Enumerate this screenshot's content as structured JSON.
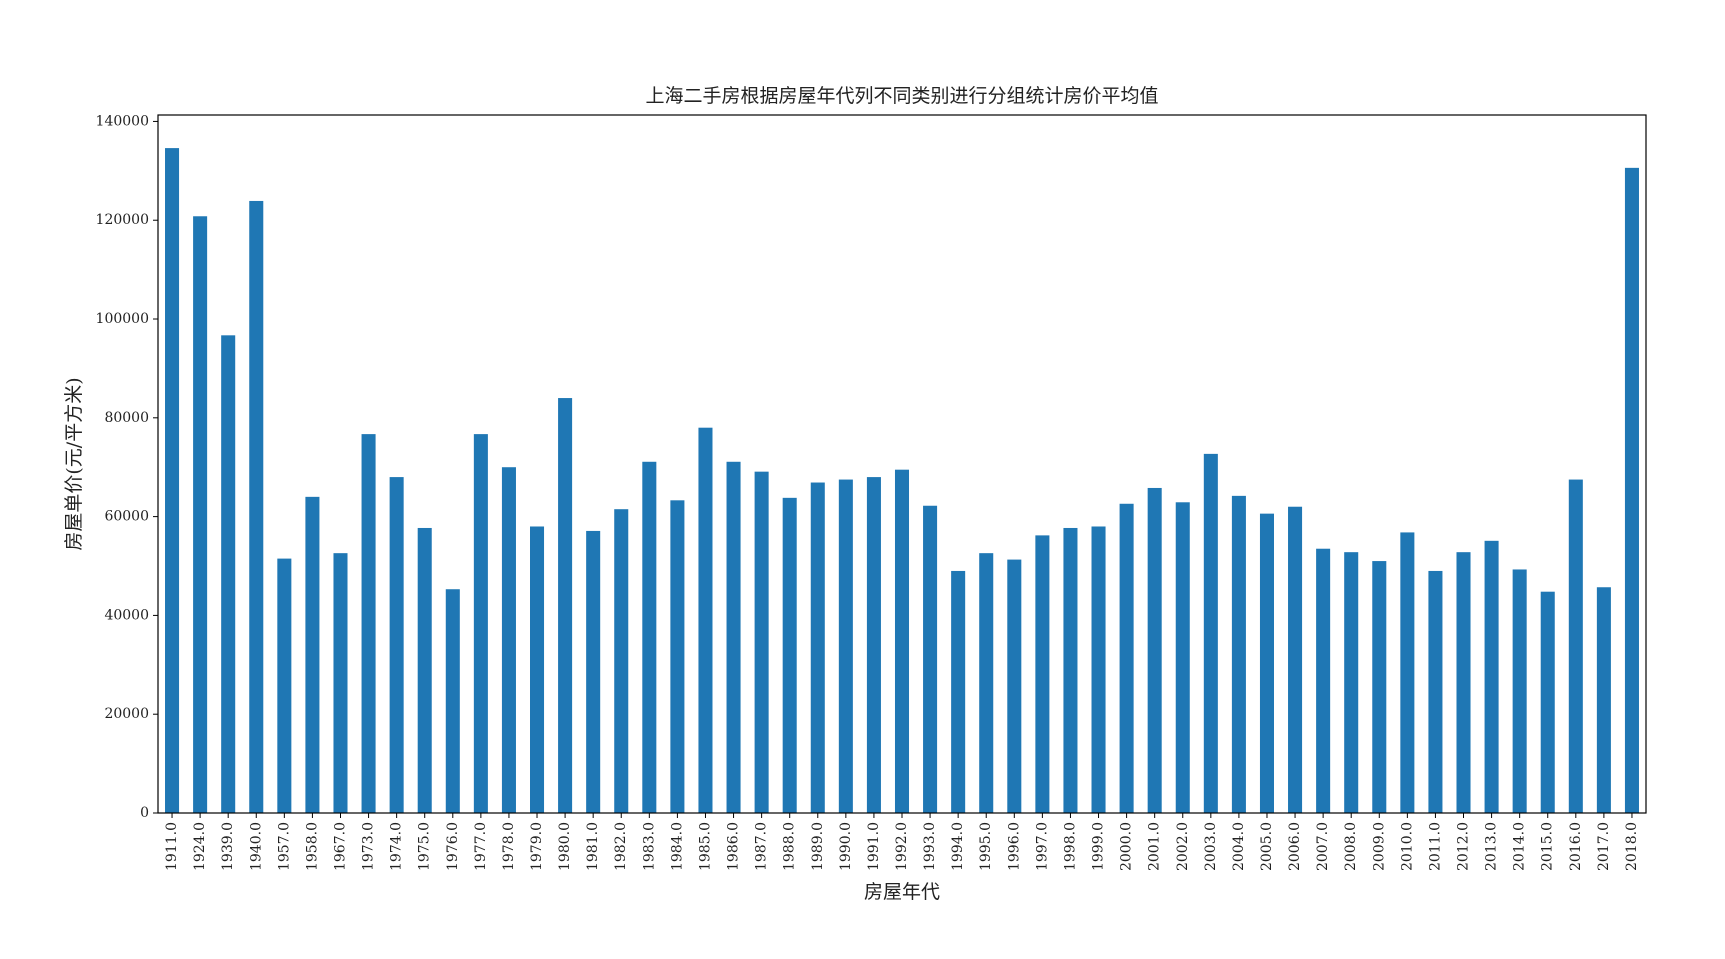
{
  "chart_data": {
    "type": "bar",
    "title": "上海二手房根据房屋年代列不同类别进行分组统计房价平均值",
    "x_label": "房屋年代",
    "y_label": "房屋单价(元/平方米)",
    "categories": [
      "1911.0",
      "1924.0",
      "1939.0",
      "1940.0",
      "1957.0",
      "1958.0",
      "1967.0",
      "1973.0",
      "1974.0",
      "1975.0",
      "1976.0",
      "1977.0",
      "1978.0",
      "1979.0",
      "1980.0",
      "1981.0",
      "1982.0",
      "1983.0",
      "1984.0",
      "1985.0",
      "1986.0",
      "1987.0",
      "1988.0",
      "1989.0",
      "1990.0",
      "1991.0",
      "1992.0",
      "1993.0",
      "1994.0",
      "1995.0",
      "1996.0",
      "1997.0",
      "1998.0",
      "1999.0",
      "2000.0",
      "2001.0",
      "2002.0",
      "2003.0",
      "2004.0",
      "2005.0",
      "2006.0",
      "2007.0",
      "2008.0",
      "2009.0",
      "2010.0",
      "2011.0",
      "2012.0",
      "2013.0",
      "2014.0",
      "2015.0",
      "2016.0",
      "2017.0",
      "2018.0"
    ],
    "values": [
      134600,
      120800,
      96700,
      123900,
      51500,
      64000,
      52600,
      76700,
      68000,
      57700,
      45300,
      76700,
      70000,
      58000,
      84000,
      57100,
      61500,
      71100,
      63300,
      78000,
      71100,
      69100,
      63800,
      66900,
      67500,
      68000,
      69500,
      62200,
      49000,
      52600,
      51300,
      56200,
      57700,
      58000,
      62600,
      65800,
      62900,
      72700,
      64200,
      60600,
      62000,
      53500,
      52800,
      51000,
      56800,
      49000,
      52800,
      55100,
      49300,
      44800,
      67500,
      45700,
      130600
    ],
    "color": "#1f77b4",
    "ylim": [
      0,
      141300
    ],
    "yticks": [
      0,
      20000,
      40000,
      60000,
      80000,
      100000,
      120000,
      140000
    ]
  }
}
